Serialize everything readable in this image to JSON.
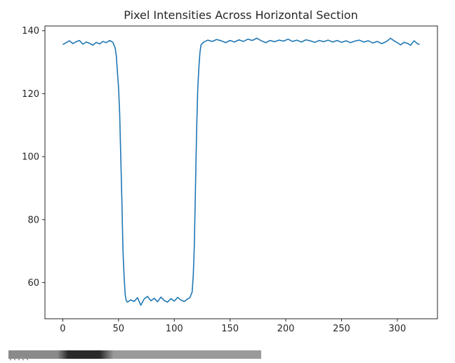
{
  "chart_data": {
    "type": "line",
    "title": "Pixel Intensities Across Horizontal Section",
    "xlabel": "",
    "ylabel": "",
    "xlim": [
      -16,
      336
    ],
    "ylim": [
      48.5,
      141.5
    ],
    "x_ticks": [
      0,
      50,
      100,
      150,
      200,
      250,
      300
    ],
    "y_ticks": [
      60,
      80,
      100,
      120,
      140
    ],
    "grid": false,
    "color": "#1f77b4",
    "series": [
      {
        "points": [
          [
            0,
            135.6
          ],
          [
            3,
            136.2
          ],
          [
            6,
            136.8
          ],
          [
            9,
            135.9
          ],
          [
            12,
            136.5
          ],
          [
            15,
            136.9
          ],
          [
            18,
            135.7
          ],
          [
            21,
            136.4
          ],
          [
            24,
            136.0
          ],
          [
            27,
            135.4
          ],
          [
            30,
            136.3
          ],
          [
            33,
            135.8
          ],
          [
            36,
            136.6
          ],
          [
            39,
            136.2
          ],
          [
            42,
            136.9
          ],
          [
            45,
            136.3
          ],
          [
            47,
            134.5
          ],
          [
            48,
            132.0
          ],
          [
            49,
            127.0
          ],
          [
            50,
            122.0
          ],
          [
            51,
            114.0
          ],
          [
            52,
            100.0
          ],
          [
            53,
            86.0
          ],
          [
            54,
            70.0
          ],
          [
            55,
            62.0
          ],
          [
            56,
            56.0
          ],
          [
            57,
            54.2
          ],
          [
            58,
            53.8
          ],
          [
            61,
            54.5
          ],
          [
            64,
            54.0
          ],
          [
            67,
            55.2
          ],
          [
            70,
            52.8
          ],
          [
            73,
            54.8
          ],
          [
            76,
            55.6
          ],
          [
            79,
            54.2
          ],
          [
            82,
            55.0
          ],
          [
            85,
            53.9
          ],
          [
            88,
            55.4
          ],
          [
            91,
            54.3
          ],
          [
            94,
            53.8
          ],
          [
            97,
            54.9
          ],
          [
            100,
            54.1
          ],
          [
            103,
            55.3
          ],
          [
            106,
            54.4
          ],
          [
            109,
            54.0
          ],
          [
            112,
            54.8
          ],
          [
            114,
            55.2
          ],
          [
            116,
            57.0
          ],
          [
            117,
            62.0
          ],
          [
            118,
            72.0
          ],
          [
            119,
            90.0
          ],
          [
            120,
            108.0
          ],
          [
            121,
            121.0
          ],
          [
            122,
            128.0
          ],
          [
            123,
            133.0
          ],
          [
            124,
            135.5
          ],
          [
            126,
            136.3
          ],
          [
            130,
            137.0
          ],
          [
            134,
            136.6
          ],
          [
            138,
            137.2
          ],
          [
            142,
            136.8
          ],
          [
            146,
            136.2
          ],
          [
            150,
            136.9
          ],
          [
            154,
            136.4
          ],
          [
            158,
            137.1
          ],
          [
            162,
            136.6
          ],
          [
            166,
            137.3
          ],
          [
            170,
            136.9
          ],
          [
            174,
            137.6
          ],
          [
            178,
            136.8
          ],
          [
            182,
            136.2
          ],
          [
            186,
            136.9
          ],
          [
            190,
            136.5
          ],
          [
            194,
            137.0
          ],
          [
            198,
            136.7
          ],
          [
            202,
            137.3
          ],
          [
            206,
            136.6
          ],
          [
            210,
            137.0
          ],
          [
            214,
            136.4
          ],
          [
            218,
            137.1
          ],
          [
            222,
            136.8
          ],
          [
            226,
            136.3
          ],
          [
            230,
            136.9
          ],
          [
            234,
            136.5
          ],
          [
            238,
            137.0
          ],
          [
            242,
            136.4
          ],
          [
            246,
            136.9
          ],
          [
            250,
            136.3
          ],
          [
            254,
            136.8
          ],
          [
            258,
            136.2
          ],
          [
            262,
            136.7
          ],
          [
            266,
            137.0
          ],
          [
            270,
            136.4
          ],
          [
            274,
            136.8
          ],
          [
            278,
            136.1
          ],
          [
            282,
            136.6
          ],
          [
            286,
            135.9
          ],
          [
            290,
            136.5
          ],
          [
            294,
            137.6
          ],
          [
            297,
            136.8
          ],
          [
            300,
            136.2
          ],
          [
            303,
            135.5
          ],
          [
            306,
            136.3
          ],
          [
            309,
            136.0
          ],
          [
            312,
            135.4
          ],
          [
            315,
            136.8
          ],
          [
            318,
            135.9
          ],
          [
            320,
            135.6
          ]
        ]
      }
    ]
  },
  "below_figure": {
    "truncation_marker": "....."
  }
}
